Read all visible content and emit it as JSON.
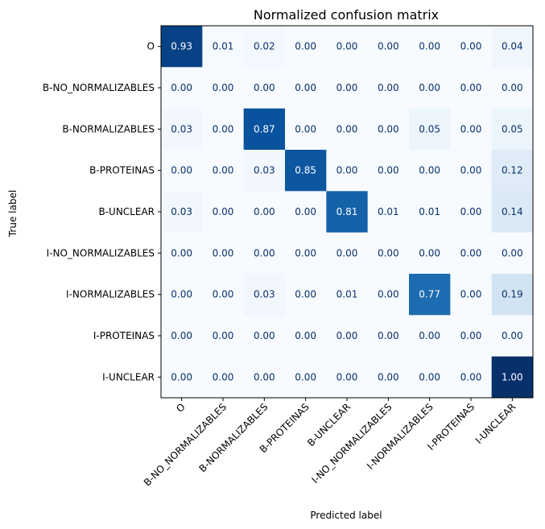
{
  "chart_data": {
    "type": "heatmap",
    "title": "Normalized confusion matrix",
    "xlabel": "Predicted label",
    "ylabel": "True label",
    "labels": [
      "O",
      "B-NO_NORMALIZABLES",
      "B-NORMALIZABLES",
      "B-PROTEINAS",
      "B-UNCLEAR",
      "I-NO_NORMALIZABLES",
      "I-NORMALIZABLES",
      "I-PROTEINAS",
      "I-UNCLEAR"
    ],
    "matrix": [
      [
        0.93,
        0.01,
        0.02,
        0.0,
        0.0,
        0.0,
        0.0,
        0.0,
        0.04
      ],
      [
        0.0,
        0.0,
        0.0,
        0.0,
        0.0,
        0.0,
        0.0,
        0.0,
        0.0
      ],
      [
        0.03,
        0.0,
        0.87,
        0.0,
        0.0,
        0.0,
        0.05,
        0.0,
        0.05
      ],
      [
        0.0,
        0.0,
        0.03,
        0.85,
        0.0,
        0.0,
        0.0,
        0.0,
        0.12
      ],
      [
        0.03,
        0.0,
        0.0,
        0.0,
        0.81,
        0.01,
        0.01,
        0.0,
        0.14
      ],
      [
        0.0,
        0.0,
        0.0,
        0.0,
        0.0,
        0.0,
        0.0,
        0.0,
        0.0
      ],
      [
        0.0,
        0.0,
        0.03,
        0.0,
        0.01,
        0.0,
        0.77,
        0.0,
        0.19
      ],
      [
        0.0,
        0.0,
        0.0,
        0.0,
        0.0,
        0.0,
        0.0,
        0.0,
        0.0
      ],
      [
        0.0,
        0.0,
        0.0,
        0.0,
        0.0,
        0.0,
        0.0,
        0.0,
        1.0
      ]
    ],
    "value_range": [
      0,
      1
    ],
    "colormap": "Blues",
    "grid": false
  }
}
